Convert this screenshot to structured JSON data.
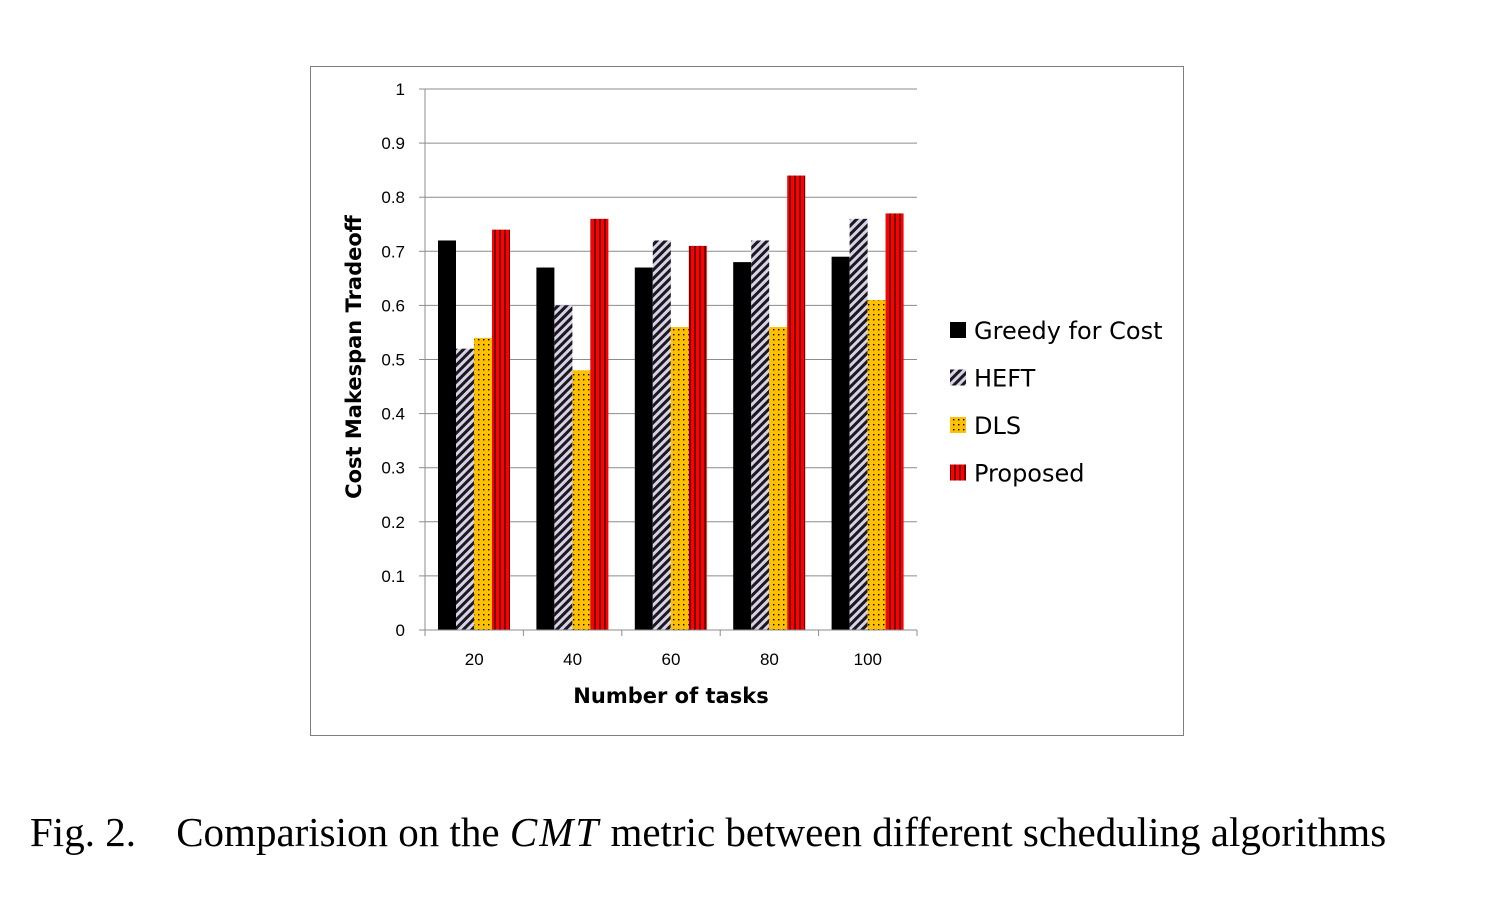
{
  "chart_data": {
    "type": "bar",
    "title": "",
    "xlabel": "Number of tasks",
    "ylabel": "Cost Makespan Tradeoff",
    "categories": [
      "20",
      "40",
      "60",
      "80",
      "100"
    ],
    "ylim": [
      0,
      1
    ],
    "yticks": [
      "0",
      "0.1",
      "0.2",
      "0.3",
      "0.4",
      "0.5",
      "0.6",
      "0.7",
      "0.8",
      "0.9",
      "1"
    ],
    "grid": "horizontal",
    "legend_position": "right",
    "series": [
      {
        "name": "Greedy for Cost",
        "values": [
          0.72,
          0.67,
          0.67,
          0.68,
          0.69
        ],
        "color": "#000000",
        "pattern": "solid"
      },
      {
        "name": "HEFT",
        "values": [
          0.52,
          0.6,
          0.72,
          0.72,
          0.76
        ],
        "color": "#c9bde0",
        "pattern": "diagonal-stripes"
      },
      {
        "name": "DLS",
        "values": [
          0.54,
          0.48,
          0.56,
          0.56,
          0.61
        ],
        "color": "#ffc000",
        "pattern": "dots"
      },
      {
        "name": "Proposed",
        "values": [
          0.74,
          0.76,
          0.71,
          0.84,
          0.77
        ],
        "color": "#ff0000",
        "pattern": "vertical-stripes"
      }
    ]
  },
  "caption": {
    "label": "Fig. 2.",
    "text_before": "Comparision on the",
    "metric": "CMT",
    "text_after": "metric between different scheduling algorithms"
  }
}
